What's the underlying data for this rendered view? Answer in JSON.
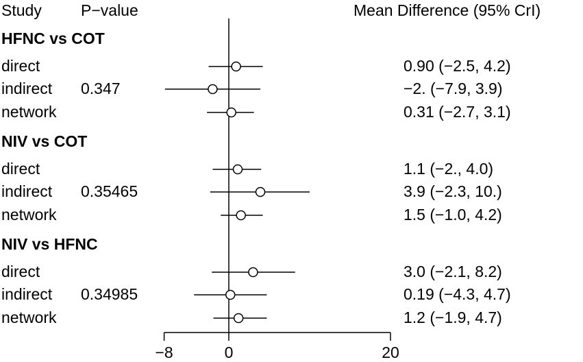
{
  "header": {
    "study": "Study",
    "pvalue": "P−value",
    "effect": "Mean Difference (95% CrI)"
  },
  "chart_data": {
    "type": "forest",
    "xlim": [
      -8,
      20
    ],
    "xticks": [
      -8,
      0,
      20
    ],
    "xtick_labels": [
      "−8",
      "0",
      "20"
    ],
    "reference_line": 0,
    "groups": [
      {
        "title": "HFNC vs COT",
        "pvalue": "0.347",
        "rows": [
          {
            "label": "direct",
            "mean": 0.9,
            "lo": -2.5,
            "hi": 4.2,
            "text": "0.90 (−2.5, 4.2)"
          },
          {
            "label": "indirect",
            "mean": -2.0,
            "lo": -7.9,
            "hi": 3.9,
            "text": "−2. (−7.9, 3.9)"
          },
          {
            "label": "network",
            "mean": 0.31,
            "lo": -2.7,
            "hi": 3.1,
            "text": "0.31 (−2.7, 3.1)"
          }
        ]
      },
      {
        "title": "NIV vs COT",
        "pvalue": "0.35465",
        "rows": [
          {
            "label": "direct",
            "mean": 1.1,
            "lo": -2.0,
            "hi": 4.0,
            "text": "1.1 (−2., 4.0)"
          },
          {
            "label": "indirect",
            "mean": 3.9,
            "lo": -2.3,
            "hi": 10.0,
            "text": "3.9 (−2.3, 10.)"
          },
          {
            "label": "network",
            "mean": 1.5,
            "lo": -1.0,
            "hi": 4.2,
            "text": "1.5 (−1.0, 4.2)"
          }
        ]
      },
      {
        "title": "NIV vs HFNC",
        "pvalue": "0.34985",
        "rows": [
          {
            "label": "direct",
            "mean": 3.0,
            "lo": -2.1,
            "hi": 8.2,
            "text": "3.0 (−2.1, 8.2)"
          },
          {
            "label": "indirect",
            "mean": 0.19,
            "lo": -4.3,
            "hi": 4.7,
            "text": "0.19 (−4.3, 4.7)"
          },
          {
            "label": "network",
            "mean": 1.2,
            "lo": -1.9,
            "hi": 4.7,
            "text": "1.2 (−1.9, 4.7)"
          }
        ]
      }
    ]
  }
}
